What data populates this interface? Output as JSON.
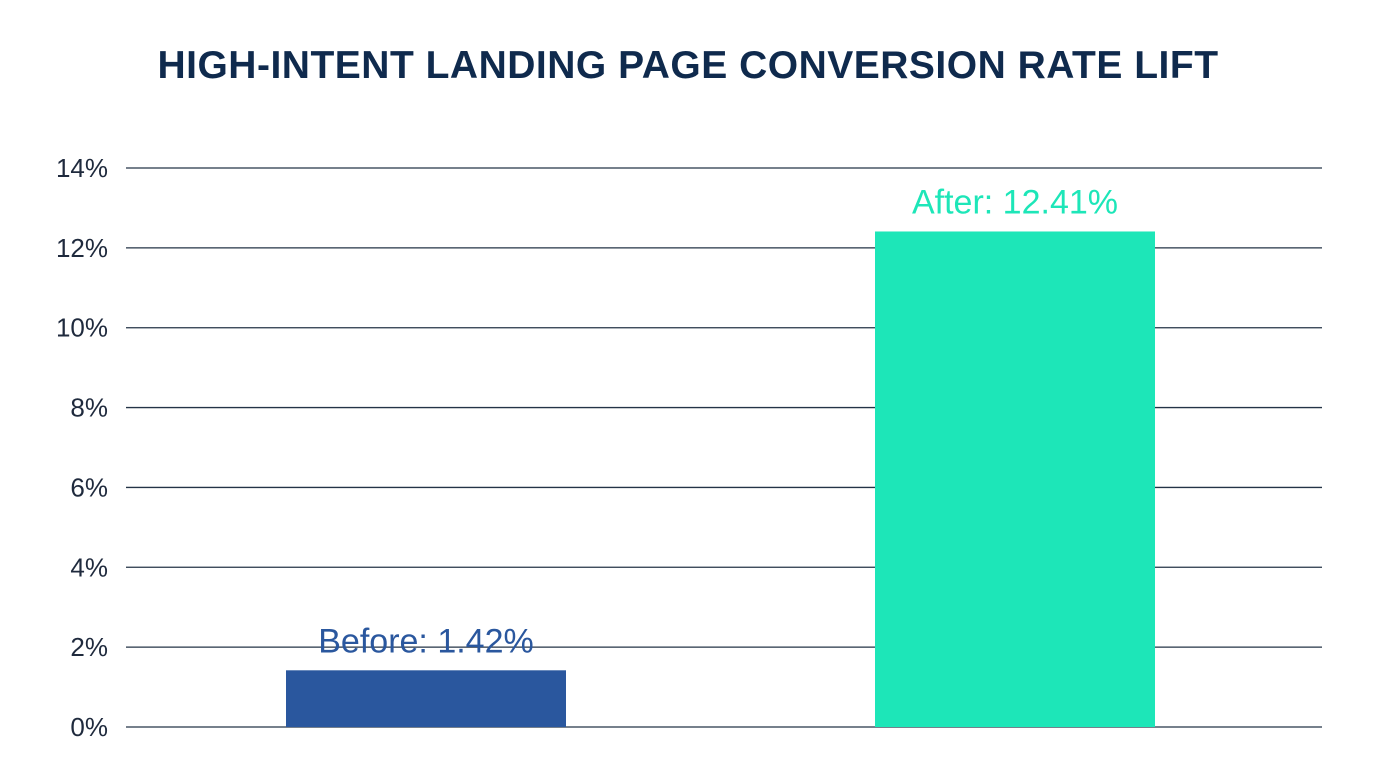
{
  "chart_data": {
    "type": "bar",
    "title": "HIGH-INTENT LANDING PAGE CONVERSION RATE LIFT",
    "xlabel": "",
    "ylabel": "",
    "categories": [
      "Before",
      "After"
    ],
    "values": [
      1.42,
      12.41
    ],
    "data_labels": [
      "Before: 1.42%",
      "After: 12.41%"
    ],
    "ylim": [
      0,
      14
    ],
    "yticks": [
      0,
      2,
      4,
      6,
      8,
      10,
      12,
      14
    ],
    "ytick_labels": [
      "0%",
      "2%",
      "4%",
      "6%",
      "8%",
      "10%",
      "12%",
      "14%"
    ],
    "grid": true,
    "legend": "none",
    "colors": {
      "bars": [
        "#2a579e",
        "#1de6b8"
      ],
      "data_labels": [
        "#2a579e",
        "#1de6b8"
      ],
      "title": "#0f2a4d",
      "gridline": "#243447",
      "tick_text": "#1f2a3d"
    }
  }
}
